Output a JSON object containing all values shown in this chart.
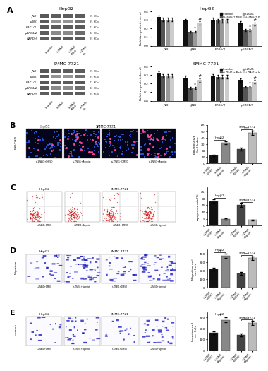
{
  "panel_A": {
    "title_hepg2": "HepG2",
    "title_smmc": "SMMC-7721",
    "western_labels": [
      "JNK",
      "pJNK",
      "ERK1/2",
      "pERK1/2",
      "GAPDH"
    ],
    "western_kdas": [
      "35 KDa",
      "35 KDa",
      "42 KDa",
      "42 KDa",
      "35 KDa"
    ],
    "bar_groups": [
      "JNK",
      "pJNK",
      "ERK1/2",
      "pERK1/2"
    ],
    "legend_labels": [
      "Scramble",
      "si-ZFAS1 + Mock",
      "si-ZFAS1",
      "si-ZFAS1 + In"
    ],
    "bar_colors": [
      "#111111",
      "#555555",
      "#999999",
      "#cccccc"
    ],
    "hepg2_data": {
      "JNK": [
        0.33,
        0.3,
        0.3,
        0.3
      ],
      "pJNK": [
        0.29,
        0.16,
        0.16,
        0.26
      ],
      "ERK1/2": [
        0.3,
        0.29,
        0.29,
        0.29
      ],
      "pERK1/2": [
        0.26,
        0.18,
        0.18,
        0.25
      ]
    },
    "hepg2_errors": {
      "JNK": [
        0.02,
        0.02,
        0.02,
        0.02
      ],
      "pJNK": [
        0.02,
        0.01,
        0.01,
        0.02
      ],
      "ERK1/2": [
        0.02,
        0.02,
        0.02,
        0.02
      ],
      "pERK1/2": [
        0.02,
        0.01,
        0.01,
        0.02
      ]
    },
    "smmc_data": {
      "JNK": [
        0.32,
        0.29,
        0.29,
        0.29
      ],
      "pJNK": [
        0.27,
        0.15,
        0.15,
        0.24
      ],
      "ERK1/2": [
        0.29,
        0.28,
        0.28,
        0.28
      ],
      "pERK1/2": [
        0.24,
        0.16,
        0.16,
        0.22
      ]
    },
    "smmc_errors": {
      "JNK": [
        0.02,
        0.02,
        0.02,
        0.02
      ],
      "pJNK": [
        0.02,
        0.01,
        0.01,
        0.02
      ],
      "ERK1/2": [
        0.02,
        0.02,
        0.02,
        0.02
      ],
      "pERK1/2": [
        0.02,
        0.01,
        0.01,
        0.02
      ]
    },
    "ylabel": "Relative protein Level",
    "ylim": [
      0,
      0.4
    ]
  },
  "panel_B": {
    "ylabel": "EdU positive\nCell Index",
    "vals": [
      12,
      32,
      22,
      48
    ],
    "errs": [
      1.2,
      2.5,
      2.0,
      3.5
    ],
    "bar_colors": [
      "#111111",
      "#888888",
      "#444444",
      "#bbbbbb"
    ],
    "xlabels": [
      "si-ZFAS1\n+DMSO",
      "si-ZFAS1\n+Agonist",
      "si-ZFAS1\n+DMSO",
      "si-ZFAS1\n+Agonist"
    ],
    "ylim": [
      0,
      60
    ],
    "group1_label": "HepG2",
    "group2_label": "SMMC-7721",
    "sig1": "ns",
    "sig2": "****"
  },
  "panel_C": {
    "ylabel": "Apoptosis rate(%)",
    "vals": [
      18,
      5,
      15,
      4
    ],
    "errs": [
      1.5,
      0.5,
      1.5,
      0.5
    ],
    "bar_colors": [
      "#111111",
      "#888888",
      "#444444",
      "#bbbbbb"
    ],
    "xlabels": [
      "si-ZFAS1\n+DMSO",
      "si-ZFAS1\n+Agonist",
      "si-ZFAS1\n+DMSO",
      "si-ZFAS1\n+Agonist"
    ],
    "ylim": [
      0,
      28
    ],
    "group1_label": "HepG2",
    "group2_label": "SMMC-7721",
    "sig1": "ns",
    "sig2": "****"
  },
  "panel_D": {
    "ylabel": "Migration cell\nper field",
    "vals": [
      220,
      380,
      170,
      350
    ],
    "errs": [
      18,
      25,
      15,
      22
    ],
    "bar_colors": [
      "#111111",
      "#888888",
      "#444444",
      "#bbbbbb"
    ],
    "xlabels": [
      "si-ZFAS1\n+DMSO",
      "si-ZFAS1\n+Agonist",
      "si-ZFAS1\n+DMSO",
      "si-ZFAS1\n+Agonist"
    ],
    "ylim": [
      0,
      450
    ],
    "group1_label": "HepG2",
    "group2_label": "SMMC-7721",
    "sig1": "ns",
    "sig2": "****"
  },
  "panel_E": {
    "ylabel": "Invasion cell\nper field",
    "vals": [
      160,
      280,
      140,
      250
    ],
    "errs": [
      14,
      20,
      12,
      18
    ],
    "bar_colors": [
      "#111111",
      "#888888",
      "#444444",
      "#bbbbbb"
    ],
    "xlabels": [
      "si-ZFAS1\n+DMSO",
      "si-ZFAS1\n+Agonist",
      "si-ZFAS1\n+DMSO",
      "si-ZFAS1\n+Agonist"
    ],
    "ylim": [
      0,
      350
    ],
    "group1_label": "HepG2",
    "group2_label": "SMMC-7721",
    "sig1": "ns",
    "sig2": "****"
  },
  "bg_color": "#ffffff"
}
